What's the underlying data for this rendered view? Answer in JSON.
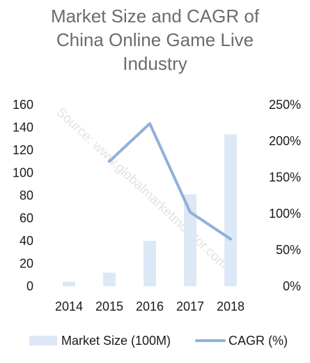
{
  "title_lines": [
    "Market Size and CAGR of",
    "China Online Game Live",
    "Industry"
  ],
  "watermark": "Source: www.globalmarketmonitor.com",
  "colors": {
    "bar": "#dde8f6",
    "line": "#8fb0da",
    "title": "#6b6b6b",
    "text": "#1a1a1a",
    "watermark": "#d9d9d9"
  },
  "chart_data": {
    "type": "bar",
    "title": "Market Size and CAGR of China Online Game Live Industry",
    "categories": [
      "2014",
      "2015",
      "2016",
      "2017",
      "2018"
    ],
    "series": [
      {
        "name": "Market Size (100M)",
        "type": "bar",
        "axis": "left",
        "values": [
          4,
          12,
          40,
          81,
          134
        ]
      },
      {
        "name": "CAGR (%)",
        "type": "line",
        "axis": "right",
        "values": [
          null,
          172,
          224,
          102,
          65
        ]
      }
    ],
    "ylim_left": [
      0,
      160
    ],
    "yticks_left": [
      "0",
      "20",
      "40",
      "60",
      "80",
      "100",
      "120",
      "140",
      "160"
    ],
    "ylim_right": [
      0,
      250
    ],
    "yticks_right": [
      "0%",
      "50%",
      "100%",
      "150%",
      "200%",
      "250%"
    ],
    "legend": "bottom",
    "grid": false
  }
}
